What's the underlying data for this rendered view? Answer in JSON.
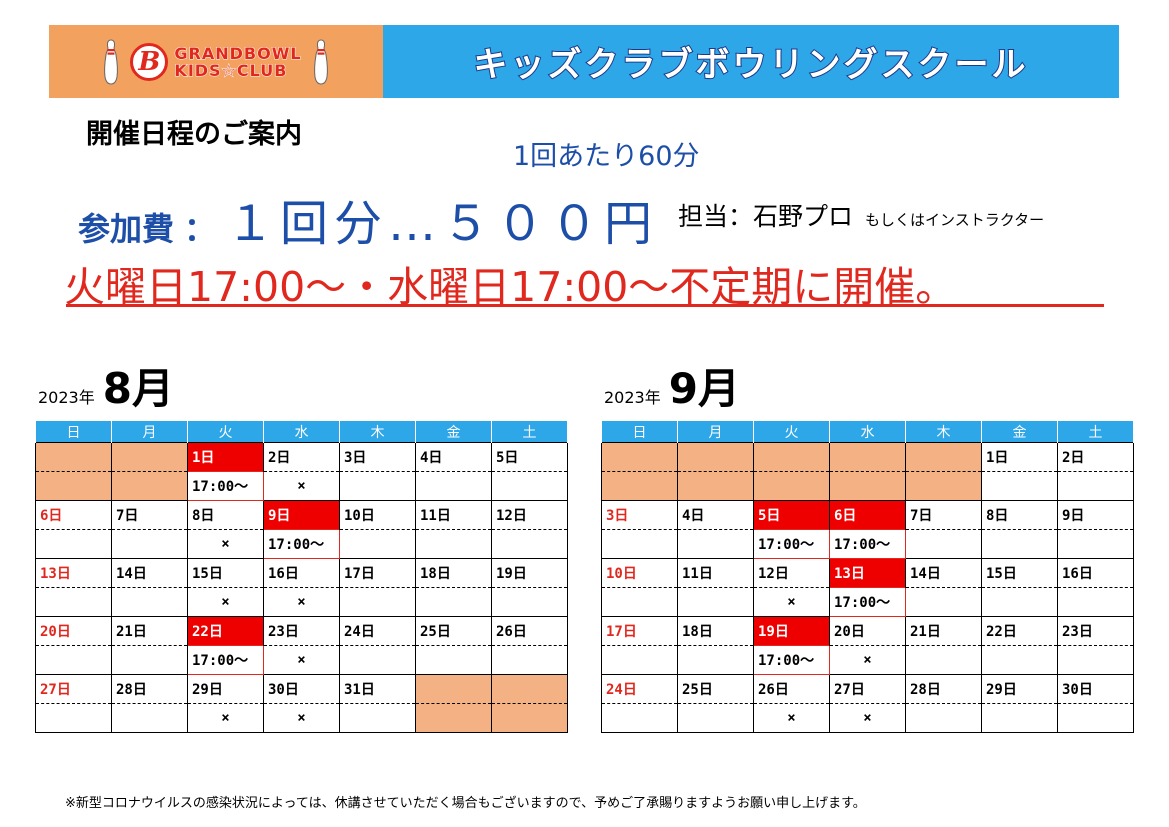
{
  "banner": {
    "logo_line1": "GRANDBOWL",
    "logo_line2": "KIDS☆CLUB",
    "logo_mark": "B",
    "title": "キッズクラブボウリングスクール",
    "colors": {
      "left_bg": "#f2a15f",
      "right_bg": "#2ea7e8",
      "logo_red": "#e0281e"
    }
  },
  "guide_title": "開催日程のご案内",
  "duration": "1回あたり60分",
  "fee": {
    "label": "参加費",
    "colon": "：",
    "value": "１回分…５００円"
  },
  "staff": {
    "main": "担当：石野プロ",
    "sub": "もしくはインストラクター"
  },
  "schedule": "火曜日17:00～・水曜日17:00～不定期に開催。",
  "weekdays": [
    "日",
    "月",
    "火",
    "水",
    "木",
    "金",
    "土"
  ],
  "calendars": [
    {
      "year": "2023年",
      "month": "8月",
      "weeks": [
        {
          "dates": [
            "",
            "",
            "1日",
            "2日",
            "3日",
            "4日",
            "5日"
          ],
          "notes": [
            "",
            "",
            "17:00～",
            "×",
            "",
            "",
            ""
          ]
        },
        {
          "dates": [
            "6日",
            "7日",
            "8日",
            "9日",
            "10日",
            "11日",
            "12日"
          ],
          "notes": [
            "",
            "",
            "×",
            "17:00～",
            "",
            "",
            ""
          ]
        },
        {
          "dates": [
            "13日",
            "14日",
            "15日",
            "16日",
            "17日",
            "18日",
            "19日"
          ],
          "notes": [
            "",
            "",
            "×",
            "×",
            "",
            "",
            ""
          ]
        },
        {
          "dates": [
            "20日",
            "21日",
            "22日",
            "23日",
            "24日",
            "25日",
            "26日"
          ],
          "notes": [
            "",
            "",
            "17:00～",
            "×",
            "",
            "",
            ""
          ]
        },
        {
          "dates": [
            "27日",
            "28日",
            "29日",
            "30日",
            "31日",
            "",
            ""
          ],
          "notes": [
            "",
            "",
            "×",
            "×",
            "",
            "",
            ""
          ]
        }
      ]
    },
    {
      "year": "2023年",
      "month": "9月",
      "weeks": [
        {
          "dates": [
            "",
            "",
            "",
            "",
            "",
            "1日",
            "2日"
          ],
          "notes": [
            "",
            "",
            "",
            "",
            "",
            "",
            ""
          ]
        },
        {
          "dates": [
            "3日",
            "4日",
            "5日",
            "6日",
            "7日",
            "8日",
            "9日"
          ],
          "notes": [
            "",
            "",
            "17:00～",
            "17:00～",
            "",
            "",
            ""
          ]
        },
        {
          "dates": [
            "10日",
            "11日",
            "12日",
            "13日",
            "14日",
            "15日",
            "16日"
          ],
          "notes": [
            "",
            "",
            "×",
            "17:00～",
            "",
            "",
            ""
          ]
        },
        {
          "dates": [
            "17日",
            "18日",
            "19日",
            "20日",
            "21日",
            "22日",
            "23日"
          ],
          "notes": [
            "",
            "",
            "17:00～",
            "×",
            "",
            "",
            ""
          ]
        },
        {
          "dates": [
            "24日",
            "25日",
            "26日",
            "27日",
            "28日",
            "29日",
            "30日"
          ],
          "notes": [
            "",
            "",
            "×",
            "×",
            "",
            "",
            ""
          ]
        }
      ]
    }
  ],
  "footnote": "※新型コロナウイルスの感染状況によっては、休講させていただく場合もございますので、予めご了承賜りますようお願い申し上げます。"
}
